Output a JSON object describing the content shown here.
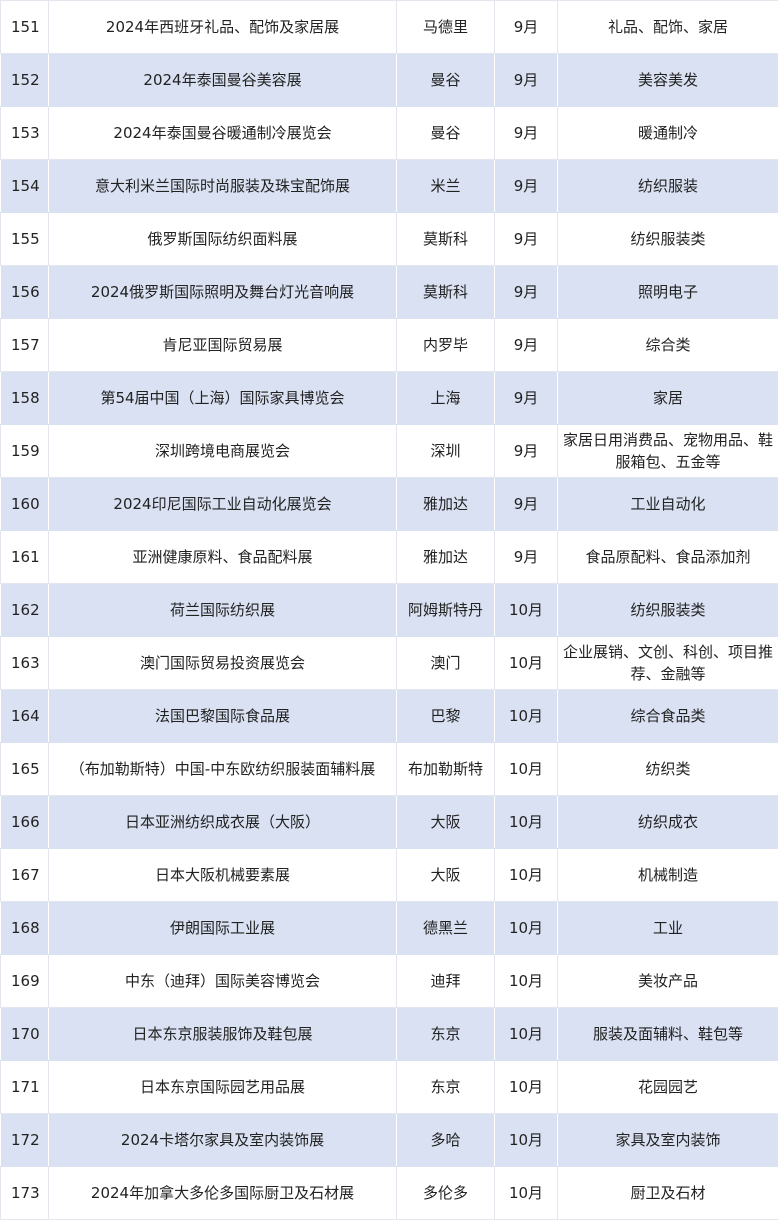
{
  "stripe_color": "#d9e1f2",
  "rows": [
    {
      "no": "151",
      "name": "2024年西班牙礼品、配饰及家居展",
      "city": "马德里",
      "month": "9月",
      "category": "礼品、配饰、家居"
    },
    {
      "no": "152",
      "name": "2024年泰国曼谷美容展",
      "city": "曼谷",
      "month": "9月",
      "category": "美容美发"
    },
    {
      "no": "153",
      "name": "2024年泰国曼谷暖通制冷展览会",
      "city": "曼谷",
      "month": "9月",
      "category": "暖通制冷"
    },
    {
      "no": "154",
      "name": "意大利米兰国际时尚服装及珠宝配饰展",
      "city": "米兰",
      "month": "9月",
      "category": "纺织服装"
    },
    {
      "no": "155",
      "name": "俄罗斯国际纺织面料展",
      "city": "莫斯科",
      "month": "9月",
      "category": "纺织服装类"
    },
    {
      "no": "156",
      "name": "2024俄罗斯国际照明及舞台灯光音响展",
      "city": "莫斯科",
      "month": "9月",
      "category": "照明电子"
    },
    {
      "no": "157",
      "name": "肯尼亚国际贸易展",
      "city": "内罗毕",
      "month": "9月",
      "category": "综合类"
    },
    {
      "no": "158",
      "name": "第54届中国（上海）国际家具博览会",
      "city": "上海",
      "month": "9月",
      "category": "家居"
    },
    {
      "no": "159",
      "name": "深圳跨境电商展览会",
      "city": "深圳",
      "month": "9月",
      "category": "家居日用消费品、宠物用品、鞋服箱包、五金等"
    },
    {
      "no": "160",
      "name": "2024印尼国际工业自动化展览会",
      "city": "雅加达",
      "month": "9月",
      "category": "工业自动化"
    },
    {
      "no": "161",
      "name": "亚洲健康原料、食品配料展",
      "city": "雅加达",
      "month": "9月",
      "category": "食品原配料、食品添加剂"
    },
    {
      "no": "162",
      "name": "荷兰国际纺织展",
      "city": "阿姆斯特丹",
      "month": "10月",
      "category": "纺织服装类"
    },
    {
      "no": "163",
      "name": "澳门国际贸易投资展览会",
      "city": "澳门",
      "month": "10月",
      "category": "企业展销、文创、科创、项目推荐、金融等"
    },
    {
      "no": "164",
      "name": "法国巴黎国际食品展",
      "city": "巴黎",
      "month": "10月",
      "category": "综合食品类"
    },
    {
      "no": "165",
      "name": "（布加勒斯特）中国-中东欧纺织服装面辅料展",
      "city": "布加勒斯特",
      "month": "10月",
      "category": "纺织类"
    },
    {
      "no": "166",
      "name": "日本亚洲纺织成衣展（大阪）",
      "city": "大阪",
      "month": "10月",
      "category": "纺织成衣"
    },
    {
      "no": "167",
      "name": "日本大阪机械要素展",
      "city": "大阪",
      "month": "10月",
      "category": "机械制造"
    },
    {
      "no": "168",
      "name": "伊朗国际工业展",
      "city": "德黑兰",
      "month": "10月",
      "category": "工业"
    },
    {
      "no": "169",
      "name": "中东（迪拜）国际美容博览会",
      "city": "迪拜",
      "month": "10月",
      "category": "美妆产品"
    },
    {
      "no": "170",
      "name": "日本东京服装服饰及鞋包展",
      "city": "东京",
      "month": "10月",
      "category": "服装及面辅料、鞋包等"
    },
    {
      "no": "171",
      "name": "日本东京国际园艺用品展",
      "city": "东京",
      "month": "10月",
      "category": "花园园艺"
    },
    {
      "no": "172",
      "name": "2024卡塔尔家具及室内装饰展",
      "city": "多哈",
      "month": "10月",
      "category": "家具及室内装饰"
    },
    {
      "no": "173",
      "name": "2024年加拿大多伦多国际厨卫及石材展",
      "city": "多伦多",
      "month": "10月",
      "category": "厨卫及石材"
    }
  ]
}
